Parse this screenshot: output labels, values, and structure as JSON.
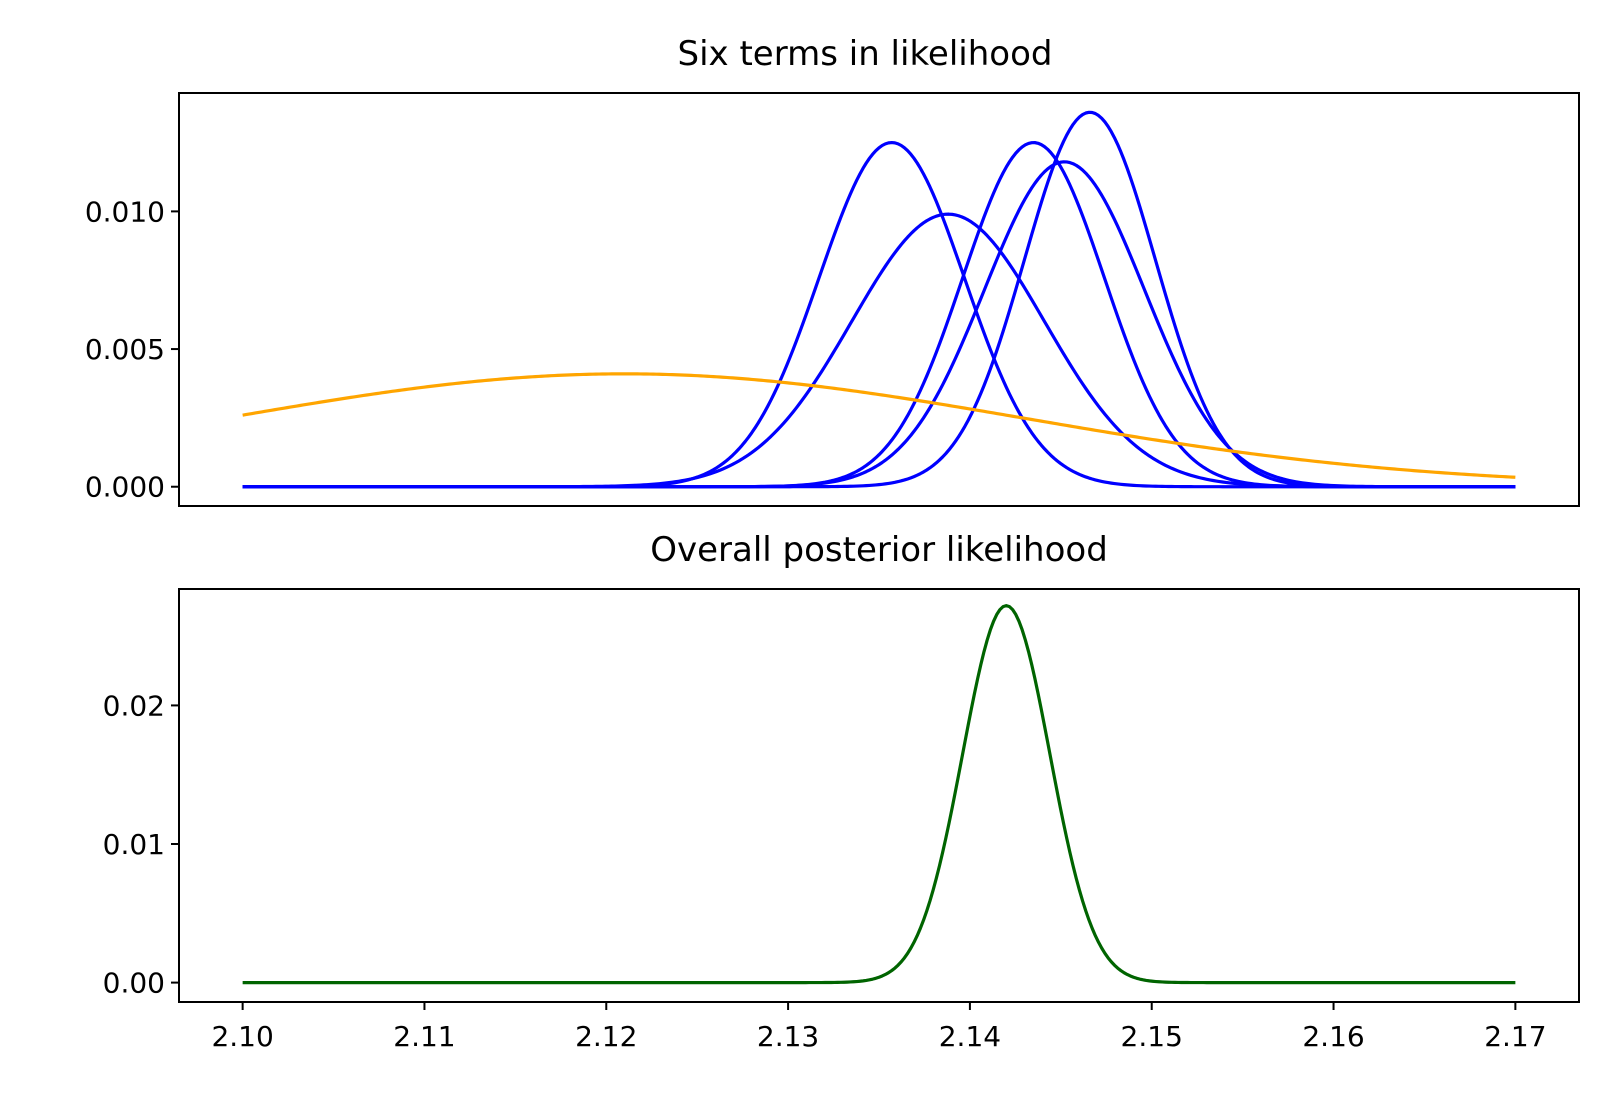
{
  "chart_data": [
    {
      "type": "line",
      "title": "Six terms in likelihood",
      "xlabel": "",
      "ylabel": "",
      "xlim": [
        2.0965,
        2.1735
      ],
      "ylim": [
        -0.0007,
        0.0143
      ],
      "x_ticks_visible": false,
      "y_ticks": [
        0.0,
        0.005,
        0.01
      ],
      "y_tick_labels": [
        "0.000",
        "0.005",
        "0.010"
      ],
      "grid": false,
      "legend": "none",
      "x_range": [
        2.1,
        2.17
      ],
      "series": [
        {
          "color": "#0000ff",
          "kind": "gaussian",
          "mean": 2.1357,
          "sd": 0.004,
          "peak": 0.0125
        },
        {
          "color": "#0000ff",
          "kind": "gaussian",
          "mean": 2.1388,
          "sd": 0.0053,
          "peak": 0.0099
        },
        {
          "color": "#0000ff",
          "kind": "gaussian",
          "mean": 2.1435,
          "sd": 0.0039,
          "peak": 0.0125
        },
        {
          "color": "#0000ff",
          "kind": "gaussian",
          "mean": 2.1452,
          "sd": 0.0044,
          "peak": 0.0118
        },
        {
          "color": "#0000ff",
          "kind": "gaussian",
          "mean": 2.1466,
          "sd": 0.0036,
          "peak": 0.0136
        },
        {
          "color": "#ffa500",
          "kind": "gaussian",
          "mean": 2.121,
          "sd": 0.022,
          "peak": 0.0041
        }
      ]
    },
    {
      "type": "line",
      "title": "Overall posterior likelihood",
      "xlabel": "",
      "ylabel": "",
      "xlim": [
        2.0965,
        2.1735
      ],
      "ylim": [
        -0.0014,
        0.0284
      ],
      "x_ticks": [
        2.1,
        2.11,
        2.12,
        2.13,
        2.14,
        2.15,
        2.16,
        2.17
      ],
      "x_tick_labels": [
        "2.10",
        "2.11",
        "2.12",
        "2.13",
        "2.14",
        "2.15",
        "2.16",
        "2.17"
      ],
      "y_ticks": [
        0.0,
        0.01,
        0.02
      ],
      "y_tick_labels": [
        "0.00",
        "0.01",
        "0.02"
      ],
      "grid": false,
      "legend": "none",
      "x_range": [
        2.1,
        2.17
      ],
      "series": [
        {
          "color": "#006400",
          "kind": "gaussian",
          "mean": 2.142,
          "sd": 0.0024,
          "peak": 0.0272
        }
      ]
    }
  ]
}
